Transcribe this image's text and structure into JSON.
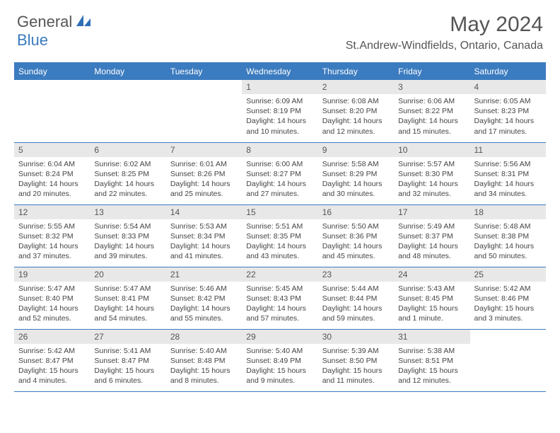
{
  "brand": {
    "part1": "General",
    "part2": "Blue"
  },
  "title": "May 2024",
  "location": "St.Andrew-Windfields, Ontario, Canada",
  "colors": {
    "header_bg": "#3b7bbf",
    "header_fg": "#ffffff",
    "daynum_bg": "#e8e8e8",
    "text_gray": "#555555",
    "body_text": "#444444",
    "row_border": "#3b7bbf"
  },
  "typography": {
    "title_pt": 30,
    "location_pt": 16,
    "dayhead_pt": 12,
    "daynum_pt": 12,
    "body_pt": 10.5
  },
  "daynames": [
    "Sunday",
    "Monday",
    "Tuesday",
    "Wednesday",
    "Thursday",
    "Friday",
    "Saturday"
  ],
  "weeks": [
    [
      null,
      null,
      null,
      {
        "n": "1",
        "rise": "Sunrise: 6:09 AM",
        "set": "Sunset: 8:19 PM",
        "d1": "Daylight: 14 hours",
        "d2": "and 10 minutes."
      },
      {
        "n": "2",
        "rise": "Sunrise: 6:08 AM",
        "set": "Sunset: 8:20 PM",
        "d1": "Daylight: 14 hours",
        "d2": "and 12 minutes."
      },
      {
        "n": "3",
        "rise": "Sunrise: 6:06 AM",
        "set": "Sunset: 8:22 PM",
        "d1": "Daylight: 14 hours",
        "d2": "and 15 minutes."
      },
      {
        "n": "4",
        "rise": "Sunrise: 6:05 AM",
        "set": "Sunset: 8:23 PM",
        "d1": "Daylight: 14 hours",
        "d2": "and 17 minutes."
      }
    ],
    [
      {
        "n": "5",
        "rise": "Sunrise: 6:04 AM",
        "set": "Sunset: 8:24 PM",
        "d1": "Daylight: 14 hours",
        "d2": "and 20 minutes."
      },
      {
        "n": "6",
        "rise": "Sunrise: 6:02 AM",
        "set": "Sunset: 8:25 PM",
        "d1": "Daylight: 14 hours",
        "d2": "and 22 minutes."
      },
      {
        "n": "7",
        "rise": "Sunrise: 6:01 AM",
        "set": "Sunset: 8:26 PM",
        "d1": "Daylight: 14 hours",
        "d2": "and 25 minutes."
      },
      {
        "n": "8",
        "rise": "Sunrise: 6:00 AM",
        "set": "Sunset: 8:27 PM",
        "d1": "Daylight: 14 hours",
        "d2": "and 27 minutes."
      },
      {
        "n": "9",
        "rise": "Sunrise: 5:58 AM",
        "set": "Sunset: 8:29 PM",
        "d1": "Daylight: 14 hours",
        "d2": "and 30 minutes."
      },
      {
        "n": "10",
        "rise": "Sunrise: 5:57 AM",
        "set": "Sunset: 8:30 PM",
        "d1": "Daylight: 14 hours",
        "d2": "and 32 minutes."
      },
      {
        "n": "11",
        "rise": "Sunrise: 5:56 AM",
        "set": "Sunset: 8:31 PM",
        "d1": "Daylight: 14 hours",
        "d2": "and 34 minutes."
      }
    ],
    [
      {
        "n": "12",
        "rise": "Sunrise: 5:55 AM",
        "set": "Sunset: 8:32 PM",
        "d1": "Daylight: 14 hours",
        "d2": "and 37 minutes."
      },
      {
        "n": "13",
        "rise": "Sunrise: 5:54 AM",
        "set": "Sunset: 8:33 PM",
        "d1": "Daylight: 14 hours",
        "d2": "and 39 minutes."
      },
      {
        "n": "14",
        "rise": "Sunrise: 5:53 AM",
        "set": "Sunset: 8:34 PM",
        "d1": "Daylight: 14 hours",
        "d2": "and 41 minutes."
      },
      {
        "n": "15",
        "rise": "Sunrise: 5:51 AM",
        "set": "Sunset: 8:35 PM",
        "d1": "Daylight: 14 hours",
        "d2": "and 43 minutes."
      },
      {
        "n": "16",
        "rise": "Sunrise: 5:50 AM",
        "set": "Sunset: 8:36 PM",
        "d1": "Daylight: 14 hours",
        "d2": "and 45 minutes."
      },
      {
        "n": "17",
        "rise": "Sunrise: 5:49 AM",
        "set": "Sunset: 8:37 PM",
        "d1": "Daylight: 14 hours",
        "d2": "and 48 minutes."
      },
      {
        "n": "18",
        "rise": "Sunrise: 5:48 AM",
        "set": "Sunset: 8:38 PM",
        "d1": "Daylight: 14 hours",
        "d2": "and 50 minutes."
      }
    ],
    [
      {
        "n": "19",
        "rise": "Sunrise: 5:47 AM",
        "set": "Sunset: 8:40 PM",
        "d1": "Daylight: 14 hours",
        "d2": "and 52 minutes."
      },
      {
        "n": "20",
        "rise": "Sunrise: 5:47 AM",
        "set": "Sunset: 8:41 PM",
        "d1": "Daylight: 14 hours",
        "d2": "and 54 minutes."
      },
      {
        "n": "21",
        "rise": "Sunrise: 5:46 AM",
        "set": "Sunset: 8:42 PM",
        "d1": "Daylight: 14 hours",
        "d2": "and 55 minutes."
      },
      {
        "n": "22",
        "rise": "Sunrise: 5:45 AM",
        "set": "Sunset: 8:43 PM",
        "d1": "Daylight: 14 hours",
        "d2": "and 57 minutes."
      },
      {
        "n": "23",
        "rise": "Sunrise: 5:44 AM",
        "set": "Sunset: 8:44 PM",
        "d1": "Daylight: 14 hours",
        "d2": "and 59 minutes."
      },
      {
        "n": "24",
        "rise": "Sunrise: 5:43 AM",
        "set": "Sunset: 8:45 PM",
        "d1": "Daylight: 15 hours",
        "d2": "and 1 minute."
      },
      {
        "n": "25",
        "rise": "Sunrise: 5:42 AM",
        "set": "Sunset: 8:46 PM",
        "d1": "Daylight: 15 hours",
        "d2": "and 3 minutes."
      }
    ],
    [
      {
        "n": "26",
        "rise": "Sunrise: 5:42 AM",
        "set": "Sunset: 8:47 PM",
        "d1": "Daylight: 15 hours",
        "d2": "and 4 minutes."
      },
      {
        "n": "27",
        "rise": "Sunrise: 5:41 AM",
        "set": "Sunset: 8:47 PM",
        "d1": "Daylight: 15 hours",
        "d2": "and 6 minutes."
      },
      {
        "n": "28",
        "rise": "Sunrise: 5:40 AM",
        "set": "Sunset: 8:48 PM",
        "d1": "Daylight: 15 hours",
        "d2": "and 8 minutes."
      },
      {
        "n": "29",
        "rise": "Sunrise: 5:40 AM",
        "set": "Sunset: 8:49 PM",
        "d1": "Daylight: 15 hours",
        "d2": "and 9 minutes."
      },
      {
        "n": "30",
        "rise": "Sunrise: 5:39 AM",
        "set": "Sunset: 8:50 PM",
        "d1": "Daylight: 15 hours",
        "d2": "and 11 minutes."
      },
      {
        "n": "31",
        "rise": "Sunrise: 5:38 AM",
        "set": "Sunset: 8:51 PM",
        "d1": "Daylight: 15 hours",
        "d2": "and 12 minutes."
      },
      null
    ]
  ]
}
